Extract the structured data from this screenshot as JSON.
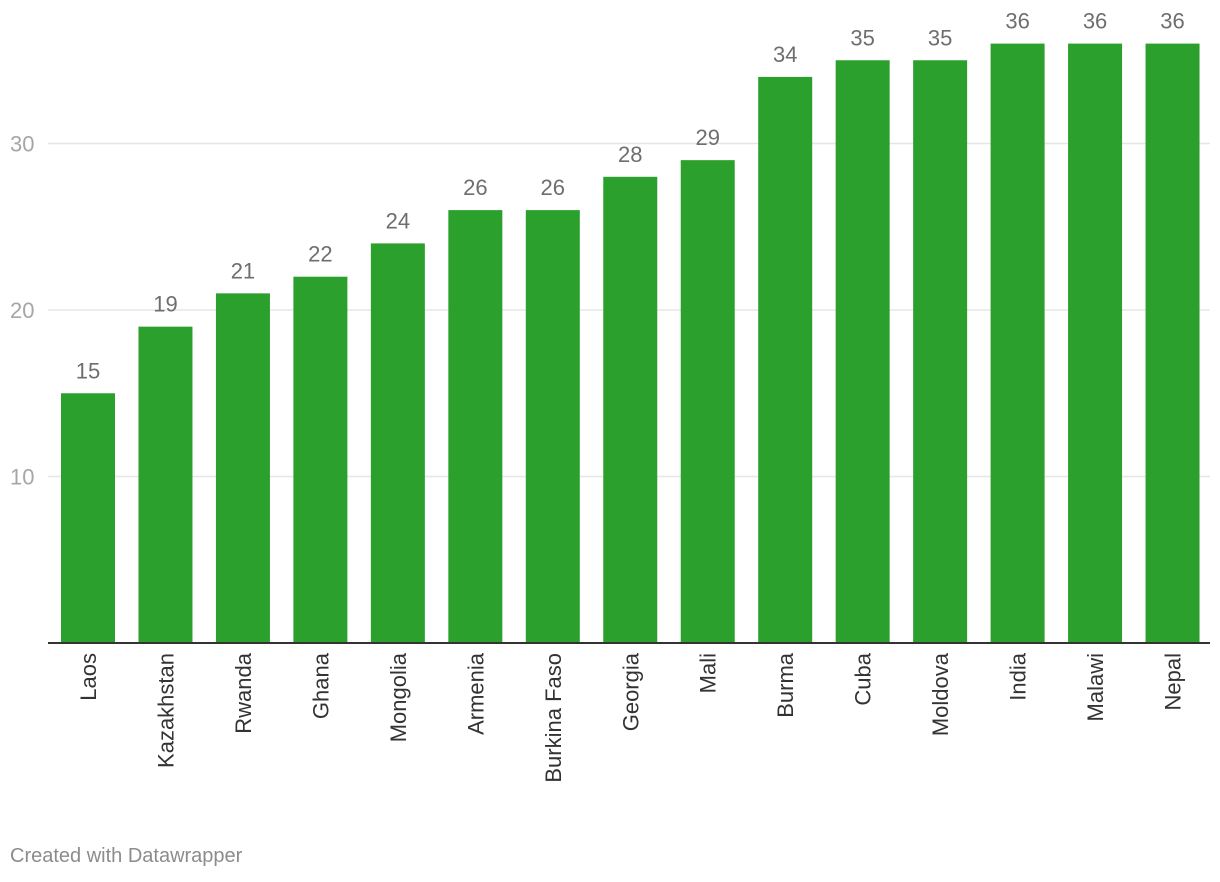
{
  "chart_data": {
    "type": "bar",
    "categories": [
      "Laos",
      "Kazakhstan",
      "Rwanda",
      "Ghana",
      "Mongolia",
      "Armenia",
      "Burkina Faso",
      "Georgia",
      "Mali",
      "Burma",
      "Cuba",
      "Moldova",
      "India",
      "Malawi",
      "Nepal"
    ],
    "values": [
      15,
      19,
      21,
      22,
      24,
      26,
      26,
      28,
      29,
      34,
      35,
      35,
      36,
      36,
      36
    ],
    "title": "",
    "xlabel": "",
    "ylabel": "",
    "ylim": [
      0,
      36
    ],
    "yticks": [
      10,
      20,
      30
    ],
    "grid": true,
    "bar_color": "#2ca02c"
  },
  "footer": {
    "credit": "Created with Datawrapper"
  }
}
